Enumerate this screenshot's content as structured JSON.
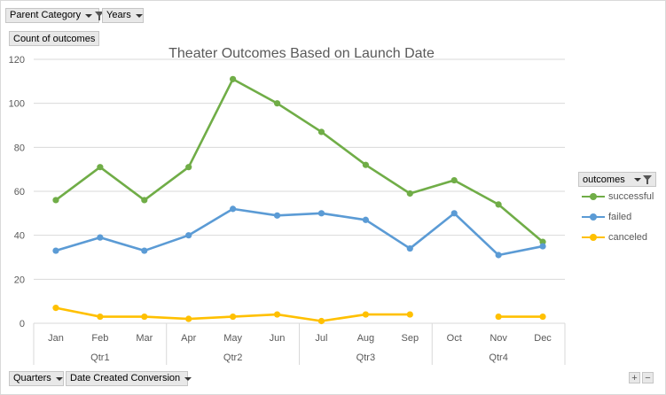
{
  "filters": {
    "parent_category": "Parent Category",
    "years": "Years",
    "quarters": "Quarters",
    "date_created": "Date Created Conversion"
  },
  "value_field": "Count of outcomes",
  "legend_field": "outcomes",
  "zoom": {
    "plus": "+",
    "minus": "−"
  },
  "colors": {
    "successful": "#70ad47",
    "failed": "#5b9bd5",
    "canceled": "#ffc000"
  },
  "chart_data": {
    "type": "line",
    "title": "Theater Outcomes Based on Launch Date",
    "categories": [
      "Jan",
      "Feb",
      "Mar",
      "Apr",
      "May",
      "Jun",
      "Jul",
      "Aug",
      "Sep",
      "Oct",
      "Nov",
      "Dec"
    ],
    "groups": [
      {
        "label": "Qtr1",
        "span": 3
      },
      {
        "label": "Qtr2",
        "span": 3
      },
      {
        "label": "Qtr3",
        "span": 3
      },
      {
        "label": "Qtr4",
        "span": 3
      }
    ],
    "ylim": [
      0,
      120
    ],
    "yticks": [
      0,
      20,
      40,
      60,
      80,
      100,
      120
    ],
    "grid": true,
    "legend": "right",
    "series": [
      {
        "name": "successful",
        "values": [
          56,
          71,
          56,
          71,
          111,
          100,
          87,
          72,
          59,
          65,
          54,
          37
        ]
      },
      {
        "name": "failed",
        "values": [
          33,
          39,
          33,
          40,
          52,
          49,
          50,
          47,
          34,
          50,
          31,
          35
        ]
      },
      {
        "name": "canceled",
        "values": [
          7,
          3,
          3,
          2,
          3,
          4,
          1,
          4,
          4,
          null,
          3,
          3
        ]
      }
    ]
  }
}
